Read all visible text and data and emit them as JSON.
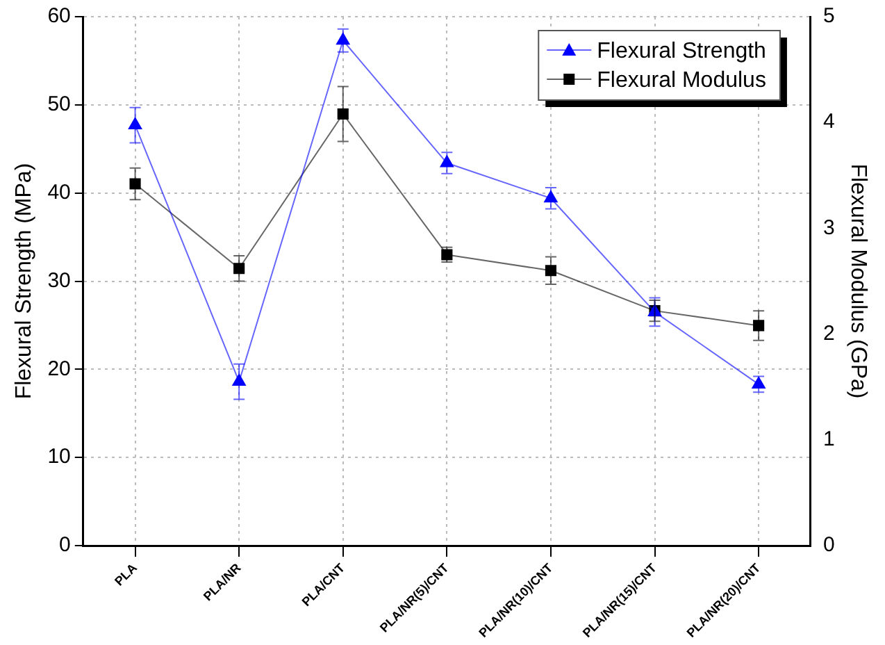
{
  "chart_data": {
    "type": "line",
    "xlabel": null,
    "ylabel": "Flexural Strength (MPa)",
    "y2label": "Flexural Modulus (GPa)",
    "categories": [
      "PLA",
      "PLA/NR",
      "PLA/CNT",
      "PLA/NR(5)/CNT",
      "PLA/NR(10)/CNT",
      "PLA/NR(15)/CNT",
      "PLA/NR(20)/CNT"
    ],
    "series": [
      {
        "name": "Flexural Strength",
        "color": "#0000ff",
        "marker": "triangle",
        "values": [
          47.7,
          18.6,
          57.3,
          43.4,
          39.4,
          26.5,
          18.3
        ],
        "errors": [
          2,
          2,
          1.3,
          1.2,
          1.2,
          1.6,
          0.9
        ]
      },
      {
        "name": "Flexural Modulus",
        "color": "#000000",
        "marker": "square",
        "axis": "y2",
        "values": [
          3.42,
          2.62,
          4.08,
          2.75,
          2.6,
          2.22,
          2.08
        ],
        "errors": [
          0.15,
          0.12,
          0.26,
          0.07,
          0.13,
          0.1,
          0.14
        ]
      }
    ],
    "ylim": [
      0,
      60
    ],
    "yticks": [
      0,
      10,
      20,
      30,
      40,
      50,
      60
    ],
    "y2lim": [
      0,
      5
    ],
    "y2ticks": [
      0,
      1,
      2,
      3,
      4,
      5
    ],
    "grid": true,
    "legend": "top right"
  }
}
